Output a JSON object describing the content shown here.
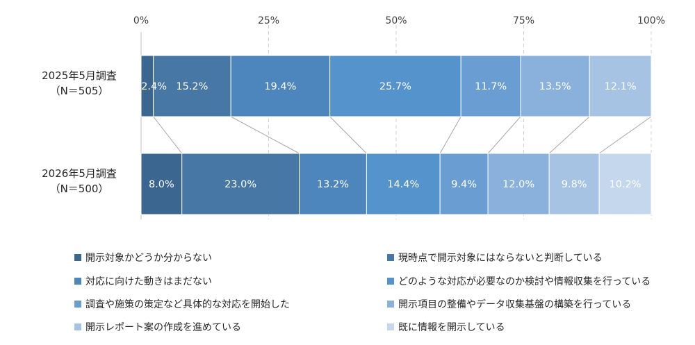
{
  "chart_data": {
    "type": "bar",
    "orientation": "horizontal",
    "stacked": "percent",
    "title": "",
    "xlabel": "",
    "ylabel": "",
    "xlim": [
      0,
      100
    ],
    "ticks": [
      "0%",
      "25%",
      "50%",
      "75%",
      "100%"
    ],
    "grid": true,
    "legend_position": "bottom",
    "categories": [
      [
        "2025年5月調査",
        "（N＝505）"
      ],
      [
        "2026年5月調査",
        "（N＝500）"
      ]
    ],
    "series": [
      {
        "name": "開示対象かどうか分からない",
        "color": "#3b6690",
        "values": [
          2.4,
          8.0
        ],
        "labels": [
          "2.4%",
          "8.0%"
        ]
      },
      {
        "name": "現時点で開示対象にはならないと判断している",
        "color": "#4777a4",
        "values": [
          15.2,
          23.0
        ],
        "labels": [
          "15.2%",
          "23.0%"
        ]
      },
      {
        "name": "対応に向けた動きはまだない",
        "color": "#4d86bc",
        "values": [
          19.4,
          13.2
        ],
        "labels": [
          "19.4%",
          "13.2%"
        ]
      },
      {
        "name": "どのような対応が必要なのか検討や情報収集を行っている",
        "color": "#5593cc",
        "values": [
          25.7,
          14.4
        ],
        "labels": [
          "25.7%",
          "14.4%"
        ]
      },
      {
        "name": "調査や施策の策定など具体的な対応を開始した",
        "color": "#6a9ed3",
        "values": [
          11.7,
          9.4
        ],
        "labels": [
          "11.7%",
          "9.4%"
        ]
      },
      {
        "name": "開示項目の整備やデータ収集基盤の構築を行っている",
        "color": "#89b1dc",
        "values": [
          13.5,
          12.0
        ],
        "labels": [
          "13.5%",
          "12.0%"
        ]
      },
      {
        "name": "開示レポート案の作成を進めている",
        "color": "#a6c3e3",
        "values": [
          12.1,
          9.8
        ],
        "labels": [
          "12.1%",
          "9.8%"
        ]
      },
      {
        "name": "既に情報を開示している",
        "color": "#c4d7ed",
        "values": [
          0,
          10.2
        ],
        "labels": [
          "",
          "10.2%"
        ]
      }
    ]
  }
}
